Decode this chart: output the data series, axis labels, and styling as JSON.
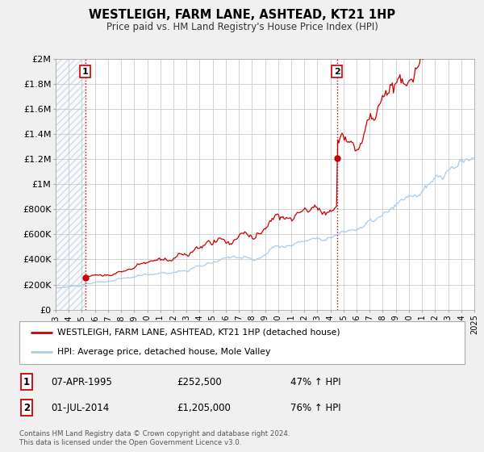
{
  "title": "WESTLEIGH, FARM LANE, ASHTEAD, KT21 1HP",
  "subtitle": "Price paid vs. HM Land Registry's House Price Index (HPI)",
  "bg_color": "#f0f0f0",
  "plot_bg_color": "#ffffff",
  "grid_color": "#cccccc",
  "red_line_color": "#cc0000",
  "blue_line_color": "#aaccee",
  "marker_color": "#cc0000",
  "vline_color": "#cc0000",
  "legend_label_red": "WESTLEIGH, FARM LANE, ASHTEAD, KT21 1HP (detached house)",
  "legend_label_blue": "HPI: Average price, detached house, Mole Valley",
  "sale1_date": 1995.27,
  "sale1_price": 252500,
  "sale2_date": 2014.5,
  "sale2_price": 1205000,
  "annotation1_date": "07-APR-1995",
  "annotation1_price": "£252,500",
  "annotation1_hpi": "47% ↑ HPI",
  "annotation2_date": "01-JUL-2014",
  "annotation2_price": "£1,205,000",
  "annotation2_hpi": "76% ↑ HPI",
  "footer": "Contains HM Land Registry data © Crown copyright and database right 2024.\nThis data is licensed under the Open Government Licence v3.0.",
  "xmin": 1993,
  "xmax": 2025,
  "ymin": 0,
  "ymax": 2000000,
  "yticks": [
    0,
    200000,
    400000,
    600000,
    800000,
    1000000,
    1200000,
    1400000,
    1600000,
    1800000,
    2000000
  ],
  "ytick_labels": [
    "£0",
    "£200K",
    "£400K",
    "£600K",
    "£800K",
    "£1M",
    "£1.2M",
    "£1.4M",
    "£1.6M",
    "£1.8M",
    "£2M"
  ]
}
